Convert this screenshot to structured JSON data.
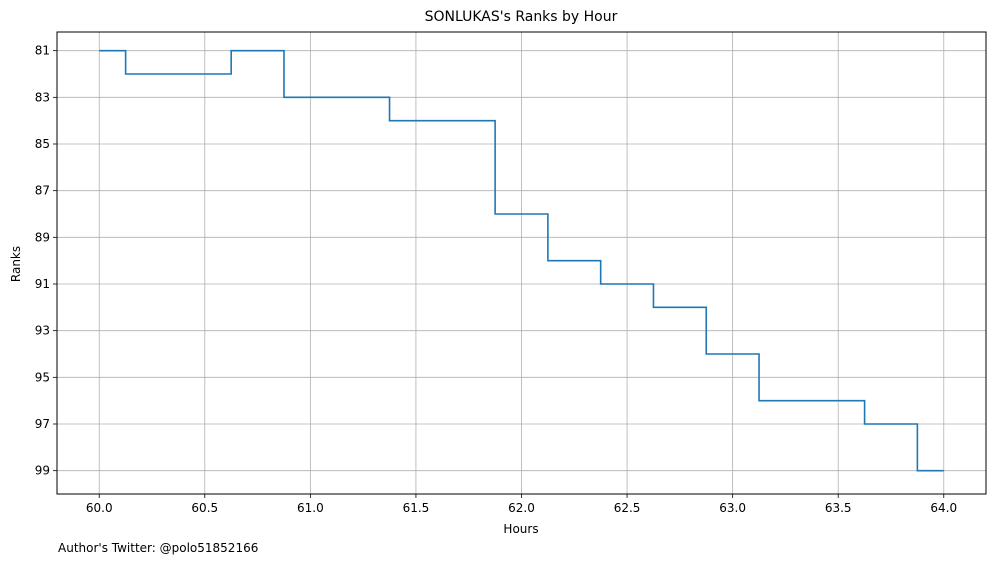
{
  "chart_data": {
    "type": "line",
    "drawstyle": "steps-post",
    "title": "SONLUKAS's Ranks by Hour",
    "xlabel": "Hours",
    "ylabel": "Ranks",
    "xlim": [
      59.8,
      64.2
    ],
    "ylim": [
      100.0,
      80.2
    ],
    "y_inverted": true,
    "grid": true,
    "xticks": [
      60.0,
      60.5,
      61.0,
      61.5,
      62.0,
      62.5,
      63.0,
      63.5,
      64.0
    ],
    "xtick_labels": [
      "60.0",
      "60.5",
      "61.0",
      "61.5",
      "62.0",
      "62.5",
      "63.0",
      "63.5",
      "64.0"
    ],
    "yticks": [
      81,
      83,
      85,
      87,
      89,
      91,
      93,
      95,
      97,
      99
    ],
    "ytick_labels": [
      "81",
      "83",
      "85",
      "87",
      "89",
      "91",
      "93",
      "95",
      "97",
      "99"
    ],
    "series": [
      {
        "color": "#1f77b4",
        "x": [
          60.0,
          60.125,
          60.625,
          60.875,
          61.375,
          61.875,
          62.125,
          62.375,
          62.625,
          62.875,
          63.125,
          63.625,
          63.875,
          64.0
        ],
        "y": [
          81,
          82,
          81,
          83,
          84,
          88,
          90,
          91,
          92,
          94,
          96,
          97,
          99,
          99
        ]
      }
    ]
  },
  "footer_text": "Author's Twitter: @polo51852166"
}
